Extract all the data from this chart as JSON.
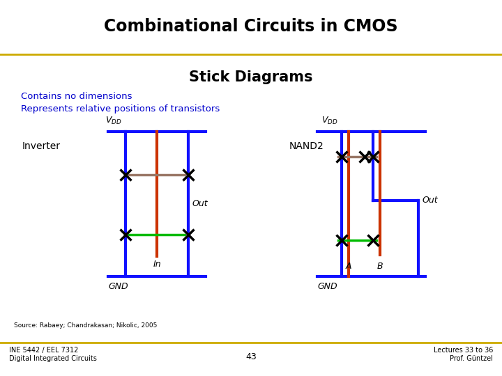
{
  "title": "Combinational Circuits in CMOS",
  "subtitle": "Stick Diagrams",
  "line1": "Contains no dimensions",
  "line2": "Represents relative positions of transistors",
  "title_bg": "#FFFF99",
  "body_bg": "#FFFFFF",
  "footer_bg": "#FFFF99",
  "blue": "#1010FF",
  "red": "#CC3300",
  "green": "#00BB00",
  "gray": "#997766",
  "black": "#000000",
  "blue_text": "#0000CC",
  "gold_line": "#CCAA00",
  "source_text": "Source: Rabaey; Chandrakasan; Nikolic, 2005",
  "left_footer": "INE 5442 / EEL 7312\nDigital Integrated Circuits",
  "center_footer": "43",
  "right_footer": "Lectures 33 to 36\nProf. Güntzel"
}
